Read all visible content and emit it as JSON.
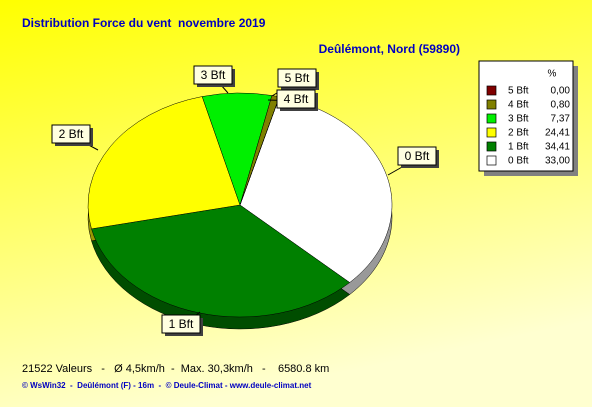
{
  "chart_data": {
    "type": "pie",
    "title": "Distribution Force du vent  novembre 2019",
    "subtitle": "Deûlémont, Nord (59890)",
    "categories": [
      "5 Bft",
      "4 Bft",
      "3 Bft",
      "2 Bft",
      "1 Bft",
      "0 Bft"
    ],
    "values": [
      0,
      0.8,
      7.37,
      24.41,
      34.41,
      33
    ],
    "value_labels": [
      "0,00",
      "0,80",
      "7,37",
      "24,41",
      "34,41",
      "33,00"
    ],
    "colors": [
      "#800000",
      "#808000",
      "#00f000",
      "#ffff00",
      "#008000",
      "#ffffff"
    ],
    "legend_title": "%",
    "legend": "right",
    "footer": "21522 Valeurs   -   Ø 4,5km/h  -  Max. 30,3km/h   -    6580.8 km",
    "credits": "© WsWin32  -  Deûlémont (F) - 16m  -  © Deule-Climat - www.deule-climat.net"
  }
}
